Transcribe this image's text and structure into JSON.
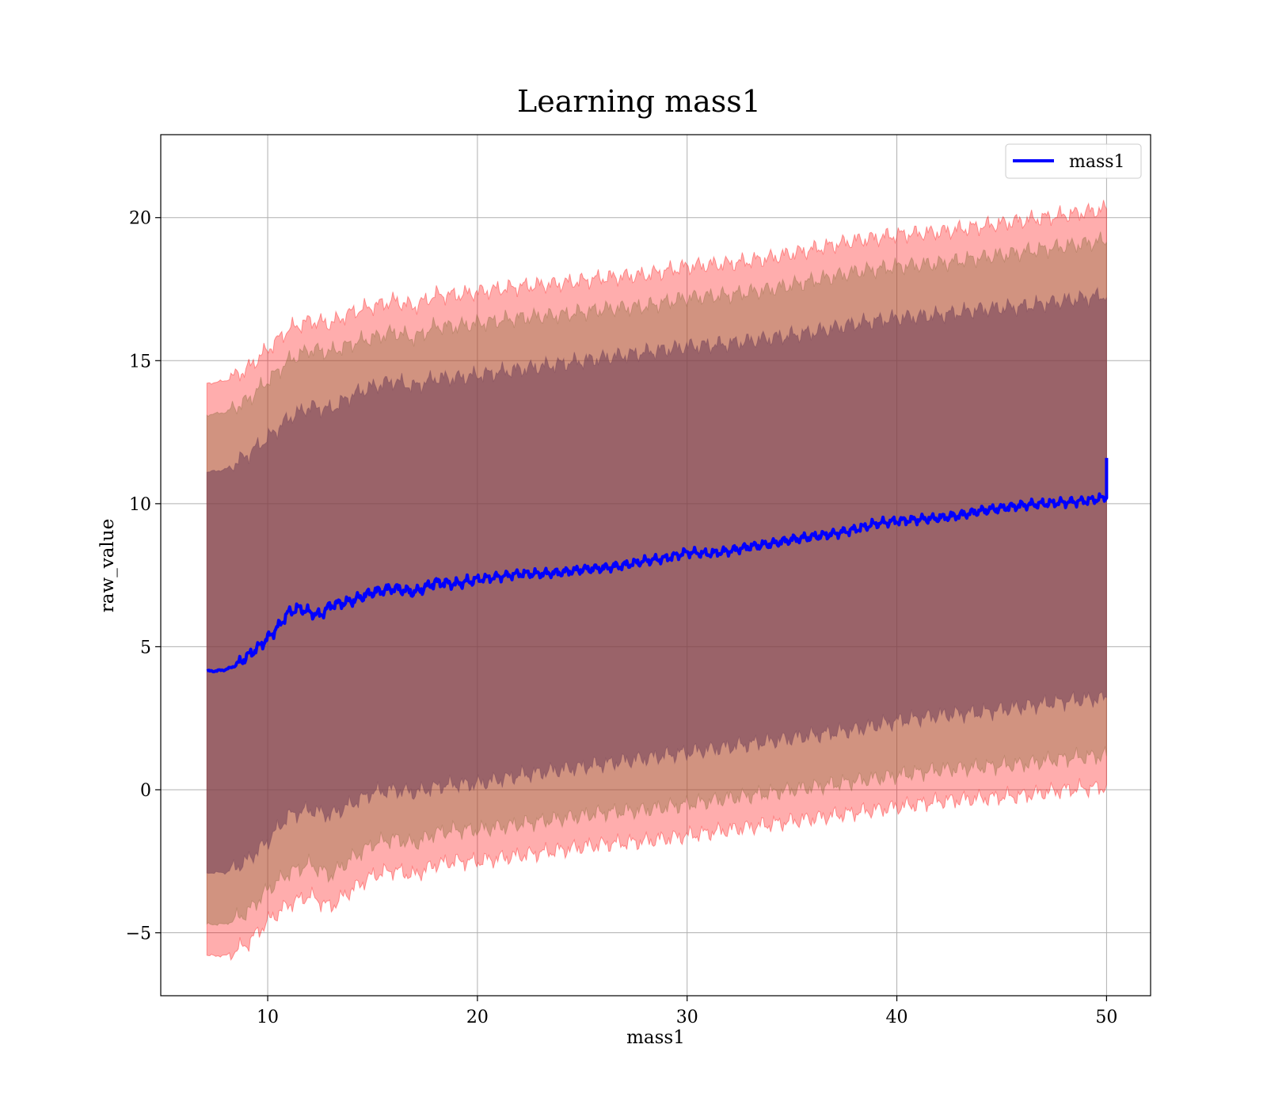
{
  "chart_data": {
    "type": "line",
    "title": "Learning mass1",
    "xlabel": "mass1",
    "ylabel": "raw_value",
    "xlim": [
      4.9,
      52.1
    ],
    "ylim": [
      -7.2,
      22.9
    ],
    "xticks": [
      10,
      20,
      30,
      40,
      50
    ],
    "yticks": [
      -5,
      0,
      5,
      10,
      15,
      20
    ],
    "xtick_labels": [
      "10",
      "20",
      "30",
      "40",
      "50"
    ],
    "ytick_labels": [
      "−5",
      "0",
      "5",
      "10",
      "15",
      "20"
    ],
    "grid": true,
    "legend": {
      "location": "top-right",
      "entries": [
        "mass1"
      ]
    },
    "series": [
      {
        "name": "mass1",
        "kind": "line",
        "color": "#0000ff",
        "x": [
          7.1,
          7.5,
          8.0,
          8.5,
          9.0,
          9.5,
          10.0,
          10.5,
          11.0,
          11.5,
          12.0,
          12.5,
          13.0,
          14.0,
          15.0,
          16.0,
          17.0,
          18.0,
          19.0,
          20.0,
          21.0,
          22.0,
          23.0,
          24.0,
          25.0,
          26.0,
          27.0,
          28.0,
          29.0,
          30.0,
          31.0,
          32.0,
          33.0,
          34.0,
          35.0,
          36.0,
          37.0,
          38.0,
          39.0,
          40.0,
          41.0,
          42.0,
          43.0,
          44.0,
          45.0,
          46.0,
          47.0,
          48.0,
          49.0,
          49.9,
          50.0
        ],
        "y": [
          4.15,
          4.15,
          4.2,
          4.35,
          4.65,
          4.95,
          5.3,
          5.7,
          6.2,
          6.35,
          6.2,
          6.1,
          6.45,
          6.6,
          6.9,
          7.05,
          6.9,
          7.25,
          7.2,
          7.35,
          7.45,
          7.55,
          7.55,
          7.6,
          7.7,
          7.75,
          7.85,
          8.0,
          8.1,
          8.3,
          8.25,
          8.35,
          8.5,
          8.6,
          8.75,
          8.85,
          8.95,
          9.1,
          9.3,
          9.4,
          9.45,
          9.5,
          9.6,
          9.75,
          9.85,
          9.95,
          10.0,
          10.05,
          10.1,
          10.2,
          11.6
        ]
      }
    ],
    "bands": [
      {
        "name": "",
        "color": "#ff0000",
        "opacity": 0.32,
        "x": [
          7.1,
          8.0,
          9.0,
          10.0,
          11.0,
          12.0,
          13.0,
          14.0,
          15.0,
          16.0,
          17.0,
          18.0,
          19.0,
          20.0,
          22.0,
          24.0,
          26.0,
          28.0,
          30.0,
          32.0,
          34.0,
          36.0,
          38.0,
          40.0,
          42.0,
          44.0,
          46.0,
          48.0,
          50.0
        ],
        "upper": [
          14.2,
          14.3,
          14.7,
          15.4,
          16.1,
          16.4,
          16.3,
          16.7,
          16.9,
          17.1,
          16.9,
          17.3,
          17.3,
          17.4,
          17.6,
          17.7,
          17.9,
          18.0,
          18.3,
          18.4,
          18.6,
          18.9,
          19.2,
          19.4,
          19.5,
          19.7,
          19.9,
          20.1,
          20.3
        ],
        "lower": [
          -5.8,
          -5.8,
          -5.4,
          -4.6,
          -4.0,
          -3.7,
          -4.1,
          -3.5,
          -3.0,
          -2.8,
          -3.0,
          -2.6,
          -2.5,
          -2.5,
          -2.3,
          -2.1,
          -1.9,
          -1.8,
          -1.6,
          -1.4,
          -1.2,
          -1.0,
          -0.8,
          -0.6,
          -0.4,
          -0.3,
          -0.2,
          0.0,
          0.1
        ]
      },
      {
        "name": "",
        "color": "#8b6b3d",
        "opacity": 0.4,
        "x": [
          7.1,
          8.0,
          9.0,
          10.0,
          11.0,
          12.0,
          13.0,
          14.0,
          15.0,
          16.0,
          17.0,
          18.0,
          19.0,
          20.0,
          22.0,
          24.0,
          26.0,
          28.0,
          30.0,
          32.0,
          34.0,
          36.0,
          38.0,
          40.0,
          42.0,
          44.0,
          46.0,
          48.0,
          50.0
        ],
        "upper": [
          13.1,
          13.2,
          13.6,
          14.3,
          15.0,
          15.4,
          15.3,
          15.6,
          15.8,
          16.0,
          15.8,
          16.2,
          16.2,
          16.3,
          16.5,
          16.6,
          16.8,
          16.9,
          17.2,
          17.3,
          17.5,
          17.8,
          18.1,
          18.3,
          18.4,
          18.6,
          18.8,
          19.0,
          19.2
        ],
        "lower": [
          -4.7,
          -4.7,
          -4.3,
          -3.5,
          -2.9,
          -2.6,
          -3.0,
          -2.4,
          -1.9,
          -1.7,
          -1.9,
          -1.5,
          -1.4,
          -1.4,
          -1.2,
          -1.0,
          -0.8,
          -0.7,
          -0.5,
          -0.3,
          -0.1,
          0.1,
          0.3,
          0.5,
          0.7,
          0.8,
          0.9,
          1.1,
          1.2
        ]
      },
      {
        "name": "",
        "color": "#6e3d55",
        "opacity": 0.55,
        "x": [
          7.1,
          8.0,
          9.0,
          10.0,
          11.0,
          12.0,
          13.0,
          14.0,
          15.0,
          16.0,
          17.0,
          18.0,
          19.0,
          20.0,
          22.0,
          24.0,
          26.0,
          28.0,
          30.0,
          32.0,
          34.0,
          36.0,
          38.0,
          40.0,
          42.0,
          44.0,
          46.0,
          48.0,
          50.0
        ],
        "upper": [
          11.1,
          11.2,
          11.7,
          12.3,
          13.0,
          13.4,
          13.3,
          13.8,
          14.1,
          14.3,
          14.1,
          14.4,
          14.4,
          14.5,
          14.7,
          14.9,
          15.1,
          15.3,
          15.5,
          15.6,
          15.8,
          16.0,
          16.3,
          16.5,
          16.6,
          16.8,
          16.9,
          17.1,
          17.3
        ],
        "lower": [
          -2.9,
          -2.9,
          -2.5,
          -1.8,
          -0.9,
          -0.7,
          -0.9,
          -0.5,
          -0.1,
          0.0,
          -0.1,
          0.1,
          0.2,
          0.2,
          0.5,
          0.7,
          0.9,
          1.1,
          1.3,
          1.5,
          1.7,
          1.9,
          2.1,
          2.4,
          2.6,
          2.7,
          2.9,
          3.1,
          3.2
        ]
      }
    ]
  }
}
